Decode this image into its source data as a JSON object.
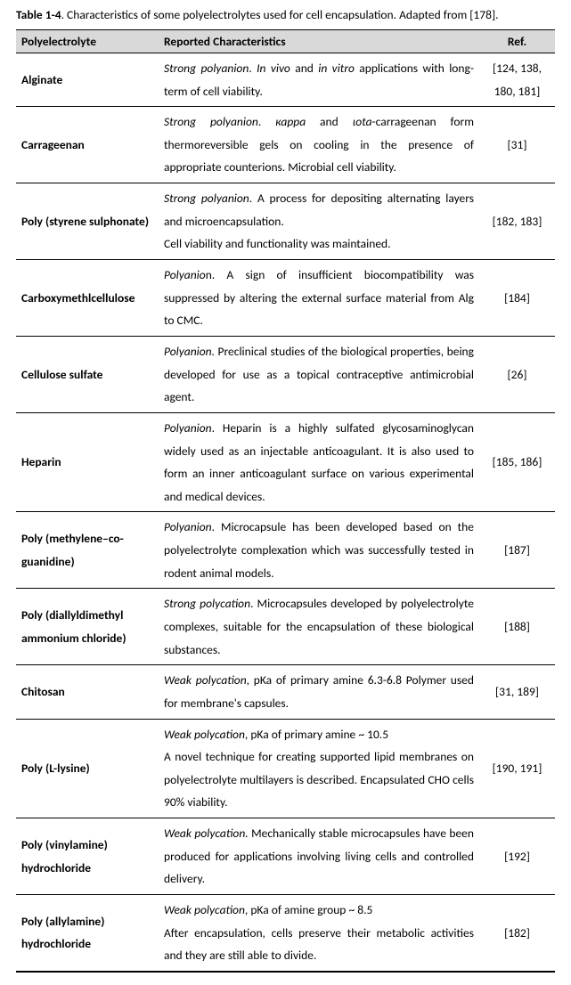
{
  "caption": {
    "label": "Table 1-4",
    "text": ". Characteristics of some polyelectrolytes used for cell encapsulation. Adapted from [178]."
  },
  "columns": {
    "polyelectrolyte": "Polyelectrolyte",
    "reported": "Reported Characteristics",
    "ref": "Ref."
  },
  "rows": [
    {
      "name": "Alginate",
      "char_html": "<span class='ital'>Strong polyanion</span>. <span class='ital'>In vivo</span> and <span class='ital'>in vitro</span> applications with long-term of cell viability.",
      "ref": "[124, 138, 180, 181]"
    },
    {
      "name": "Carrageenan",
      "char_html": "<span class='ital'>Strong polyanion</span>. <span class='ital'>кappa</span> and <span class='ital'>ιota</span>-carrageenan form thermoreversible gels on cooling in the presence of appropriate counterions. Microbial cell viability.",
      "ref": "[31]"
    },
    {
      "name": "Poly (styrene sulphonate)",
      "char_html": "<span class='ital'>Strong polyanion</span>. A process for depositing alternating layers and microencapsulation.<br>Cell viability and functionality was maintained.",
      "ref": "[182, 183]"
    },
    {
      "name": "Carboxymethlcellulose",
      "char_html": "<span class='ital'>Polyanio</span>n. A sign of insufficient biocompatibility was suppressed by altering the external surface material from Alg to CMC.",
      "ref": "[184]"
    },
    {
      "name": "Cellulose sulfate",
      "char_html": "<span class='ital'>Polyanion.</span> Preclinical studies of the biological properties, being developed for use as a topical contraceptive antimicrobial agent.",
      "ref": "[26]"
    },
    {
      "name": "Heparin",
      "char_html": "<span class='ital'>Polyanion</span>. Heparin is a highly sulfated glycosaminoglycan widely used as an injectable anticoagulant. It is also used to form an inner anticoagulant surface on various experimental and medical devices.",
      "ref": "[185, 186]"
    },
    {
      "name": "Poly (methylene–co-guanidine)",
      "char_html": "<span class='ital'>Polyanion</span>. Microcapsule has been developed based on the polyelectrolyte complexation which was successfully tested in rodent animal models.",
      "ref": "[187]"
    },
    {
      "name": "Poly (diallyldimethyl ammonium chloride)",
      "char_html": "<span class='ital'>Strong polycation</span>. Microcapsules developed by polyelectrolyte complexes, suitable for the encapsulation of these biological substances.",
      "ref": "[188]"
    },
    {
      "name": "Chitosan",
      "char_html": "<span class='ital'>Weak polycation</span>, pKa of primary amine 6.3-6.8 Polymer used for membrane's capsules.",
      "ref": "[31, 189]"
    },
    {
      "name": "Poly (L-lysine)",
      "char_html": "<span class='ital'>Weak polycation</span>, pKa of primary amine ~ 10.5<br>A novel technique for creating supported lipid membranes on polyelectrolyte multilayers is described. Encapsulated CHO cells 90% viability.",
      "ref": "[190, 191]"
    },
    {
      "name": "Poly (vinylamine) hydrochloride",
      "char_html": "<span class='ital'>Weak polycation.</span> Mechanically stable microcapsules have been produced for applications involving living cells and controlled delivery.",
      "ref": "[192]"
    },
    {
      "name": "Poly (allylamine) hydrochloride",
      "char_html": "<span class='ital'>Weak polycation</span>, pKa of amine group ~ 8.5<br>After encapsulation, cells preserve their metabolic activities and they are still able to divide.",
      "ref": "[182]"
    }
  ]
}
